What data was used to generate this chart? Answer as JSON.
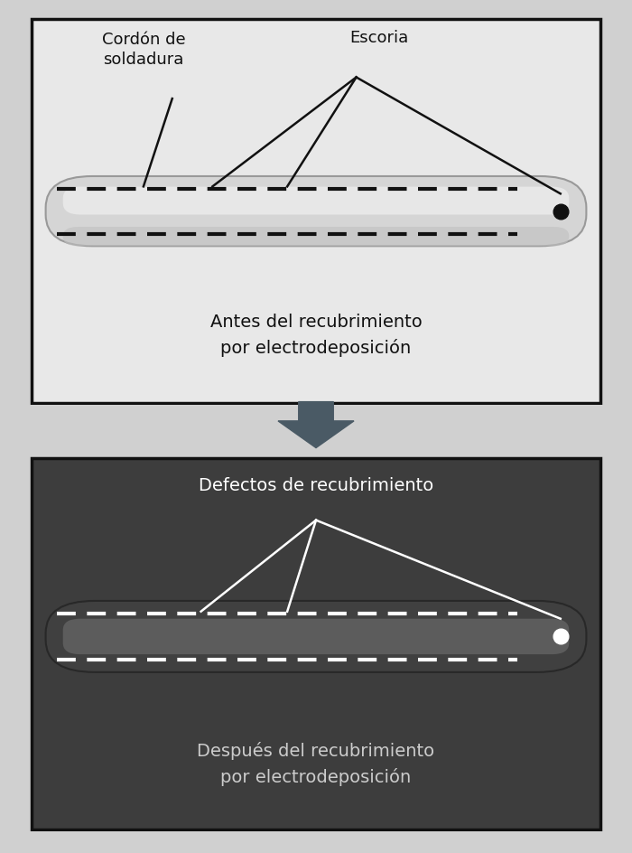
{
  "fig_bg": "#d0d0d0",
  "top_panel_bg": "#e8e8e8",
  "top_border_color": "#111111",
  "bottom_panel_bg": "#3d3d3d",
  "bottom_border_color": "#111111",
  "arrow_color": "#4a5a65",
  "top_label1": "Cordón de\nsoldadura",
  "top_label2": "Escoria",
  "top_caption": "Antes del recubrimiento\npor electrodeposición",
  "bottom_label": "Defectos de recubrimiento",
  "bottom_caption": "Después del recubrimiento\npor electrodeposición",
  "top_dash_color": "#111111",
  "bottom_dash_color": "#ffffff",
  "top_dot_color": "#111111",
  "bottom_dot_color": "#ffffff",
  "top_line_color": "#111111",
  "bottom_line_color": "#ffffff",
  "caption_color_top": "#111111",
  "caption_color_bottom": "#cccccc",
  "top_pipe_fill": "#d8d8d8",
  "top_pipe_edge": "#aaaaaa",
  "bottom_pipe_fill": "#555555",
  "bottom_pipe_edge": "#333333"
}
